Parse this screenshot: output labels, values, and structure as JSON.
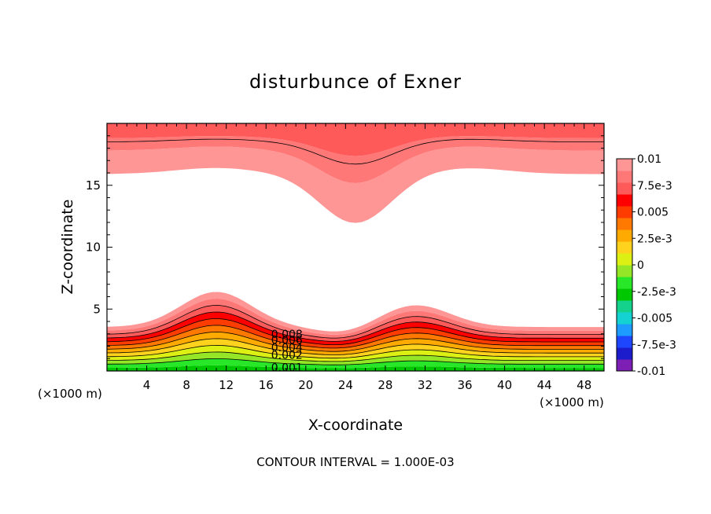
{
  "chart_data": {
    "type": "contour",
    "title": "disturbunce of Exner",
    "xlabel": "X-coordinate",
    "ylabel": "Z-coordinate",
    "x_unit_left": "(×1000 m)",
    "x_unit_right": "(×1000 m)",
    "footer": "CONTOUR INTERVAL = 1.000E-03",
    "xlim": [
      0,
      50
    ],
    "ylim": [
      0,
      20
    ],
    "x_ticks": [
      4,
      8,
      12,
      16,
      20,
      24,
      28,
      32,
      36,
      40,
      44,
      48
    ],
    "y_ticks": [
      5,
      10,
      15
    ],
    "contour_interval": 0.001,
    "contour_labels": [
      "0.008",
      "0.006",
      "0.004",
      "0.002",
      "0.001"
    ],
    "colorbar": {
      "labels": [
        "0.01",
        "7.5e-3",
        "0.005",
        "2.5e-3",
        "0",
        "-2.5e-3",
        "-0.005",
        "-7.5e-3",
        "-0.01"
      ],
      "colors": [
        "#7d1fb4",
        "#1c1ccc",
        "#1e46ff",
        "#1e9bff",
        "#14d2d2",
        "#14d28c",
        "#00c800",
        "#28e628",
        "#96e628",
        "#dcf014",
        "#ffd21e",
        "#ffaa00",
        "#ff7800",
        "#ff3c00",
        "#ff0000",
        "#ff5a5a",
        "#ff7878",
        "#ff9696"
      ],
      "range": [
        -0.01,
        0.01
      ]
    }
  }
}
